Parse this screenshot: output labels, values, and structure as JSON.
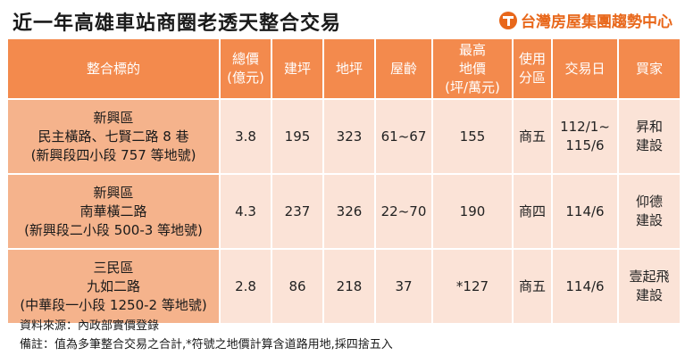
{
  "title": "近一年高雄車站商圈老透天整合交易",
  "brand": {
    "logo_icon": "taiwan-realty-logo-icon",
    "name": "台灣房屋集團趨勢中心",
    "color": "#e8671a"
  },
  "table": {
    "headers": [
      {
        "lines": [
          "整合標的"
        ]
      },
      {
        "lines": [
          "總價",
          "(億元)"
        ]
      },
      {
        "lines": [
          "建坪"
        ]
      },
      {
        "lines": [
          "地坪"
        ]
      },
      {
        "lines": [
          "屋齡"
        ]
      },
      {
        "lines": [
          "最高",
          "地價",
          "(坪/萬元)"
        ]
      },
      {
        "lines": [
          "使用",
          "分區"
        ]
      },
      {
        "lines": [
          "交易日"
        ]
      },
      {
        "lines": [
          "買家"
        ]
      }
    ],
    "rows": [
      {
        "target": [
          "新興區",
          "民主橫路、七賢二路 8 巷",
          "(新興段四小段 757 等地號)"
        ],
        "price": "3.8",
        "building_ping": "195",
        "land_ping": "323",
        "age": "61~67",
        "land_price": "155",
        "zoning": "商五",
        "date": [
          "112/1~",
          "115/6"
        ],
        "buyer": [
          "昇和",
          "建設"
        ]
      },
      {
        "target": [
          "新興區",
          "南華橫二路",
          "(新興段二小段 500-3 等地號)"
        ],
        "price": "4.3",
        "building_ping": "237",
        "land_ping": "326",
        "age": "22~70",
        "land_price": "190",
        "zoning": "商四",
        "date": [
          "114/6"
        ],
        "buyer": [
          "仰德",
          "建設"
        ]
      },
      {
        "target": [
          "三民區",
          "九如二路",
          "(中華段一小段 1250-2 等地號)"
        ],
        "price": "2.8",
        "building_ping": "86",
        "land_ping": "218",
        "age": "37",
        "land_price": "*127",
        "zoning": "商五",
        "date": [
          "114/6"
        ],
        "buyer": [
          "壹起飛",
          "建設"
        ]
      }
    ]
  },
  "notes": {
    "source": "資料來源：內政部實價登錄",
    "remark": "備註：值為多筆整合交易之合計,*符號之地價計算含道路用地,採四捨五入"
  }
}
